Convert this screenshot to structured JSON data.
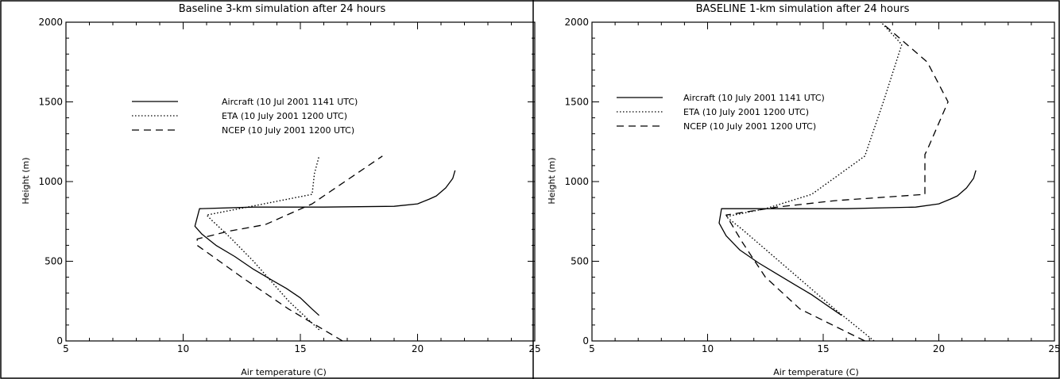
{
  "chart_data": [
    {
      "type": "line",
      "title": "Baseline 3-km simulation after 24 hours",
      "xlabel": "Air temperature (C)",
      "ylabel": "Height (m)",
      "xlim": [
        5,
        25
      ],
      "ylim": [
        0,
        2000
      ],
      "xticks": [
        "5",
        "10",
        "15",
        "20",
        "25"
      ],
      "yticks": [
        "0",
        "500",
        "1000",
        "1500",
        "2000"
      ],
      "legend_position": "upper-left",
      "series": [
        {
          "name": "Aircraft (10 Jul 2001 1141 UTC)",
          "style": "solid",
          "x": [
            15.8,
            15.5,
            15.0,
            14.4,
            13.8,
            13.0,
            12.2,
            11.4,
            10.8,
            10.5,
            10.7,
            13.0,
            16.0,
            19.0,
            20.0,
            20.5,
            20.8,
            21.2,
            21.5,
            21.6
          ],
          "y": [
            160,
            200,
            270,
            330,
            380,
            450,
            530,
            600,
            670,
            720,
            830,
            840,
            840,
            845,
            860,
            890,
            910,
            960,
            1020,
            1070
          ]
        },
        {
          "name": "ETA (10 July 2001 1200 UTC)",
          "style": "dotted",
          "x": [
            15.8,
            14.5,
            13.0,
            12.0,
            11.2,
            11.0,
            12.4,
            15.5,
            15.6,
            15.8
          ],
          "y": [
            70,
            250,
            500,
            650,
            760,
            790,
            830,
            920,
            1050,
            1160
          ]
        },
        {
          "name": "NCEP (10 July 2001 1200 UTC)",
          "style": "dashed",
          "x": [
            16.8,
            14.5,
            12.5,
            10.6,
            10.6,
            12.0,
            13.5,
            15.5,
            18.5
          ],
          "y": [
            0,
            200,
            400,
            600,
            640,
            690,
            730,
            860,
            1160
          ]
        }
      ]
    },
    {
      "type": "line",
      "title": "BASELINE 1-km simulation after 24 hours",
      "xlabel": "Air temperature (C)",
      "ylabel": "Height (m)",
      "xlim": [
        5,
        25
      ],
      "ylim": [
        0,
        2000
      ],
      "xticks": [
        "5",
        "10",
        "15",
        "20",
        "25"
      ],
      "yticks": [
        "0",
        "500",
        "1000",
        "1500",
        "2000"
      ],
      "legend_position": "upper-left",
      "series": [
        {
          "name": "Aircraft (10 July 2001 1141 UTC)",
          "style": "solid",
          "x": [
            15.8,
            15.2,
            14.5,
            13.8,
            13.0,
            12.2,
            11.4,
            10.8,
            10.5,
            10.6,
            13.0,
            16.0,
            19.0,
            20.0,
            20.5,
            20.8,
            21.2,
            21.5,
            21.6
          ],
          "y": [
            160,
            220,
            290,
            350,
            420,
            490,
            570,
            660,
            740,
            830,
            830,
            830,
            840,
            860,
            890,
            910,
            960,
            1020,
            1070
          ]
        },
        {
          "name": "ETA (10 July 2001 1200 UTC)",
          "style": "dotted",
          "x": [
            17.2,
            15.5,
            13.5,
            11.5,
            10.8,
            12.5,
            14.5,
            16.8,
            17.6,
            18.4,
            17.5
          ],
          "y": [
            0,
            200,
            450,
            700,
            780,
            830,
            920,
            1160,
            1500,
            1860,
            2000
          ]
        },
        {
          "name": "NCEP (10 July 2001 1200 UTC)",
          "style": "dashed",
          "x": [
            16.8,
            14.0,
            12.5,
            11.5,
            10.8,
            13.0,
            15.5,
            19.4,
            19.4,
            19.5,
            20.4,
            19.5,
            17.5
          ],
          "y": [
            0,
            200,
            400,
            620,
            790,
            840,
            880,
            920,
            1170,
            1200,
            1500,
            1750,
            2000
          ]
        }
      ]
    }
  ]
}
